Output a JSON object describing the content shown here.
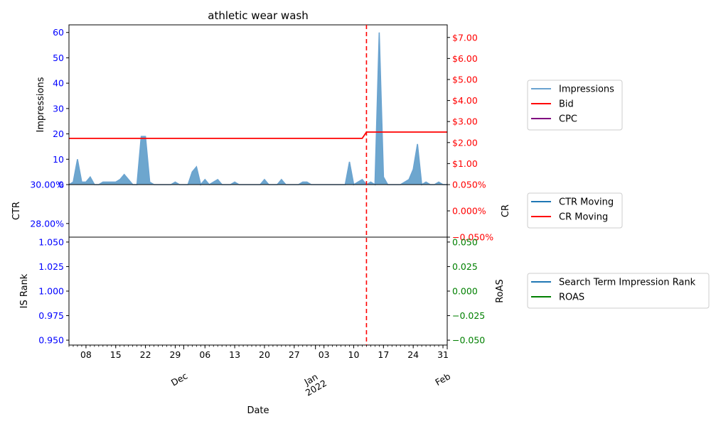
{
  "chart_data": {
    "type": "line",
    "title": "athletic wear wash",
    "xlabel": "Date",
    "x_range": [
      "2021-11-04",
      "2022-02-01"
    ],
    "x_ticks": [
      {
        "date": "2021-11-08",
        "label": "08"
      },
      {
        "date": "2021-11-15",
        "label": "15"
      },
      {
        "date": "2021-11-22",
        "label": "22"
      },
      {
        "date": "2021-11-29",
        "label": "29"
      },
      {
        "date": "2021-12-06",
        "label": "06"
      },
      {
        "date": "2021-12-13",
        "label": "13"
      },
      {
        "date": "2021-12-20",
        "label": "20"
      },
      {
        "date": "2021-12-27",
        "label": "27"
      },
      {
        "date": "2022-01-03",
        "label": "03"
      },
      {
        "date": "2022-01-10",
        "label": "10"
      },
      {
        "date": "2022-01-17",
        "label": "17"
      },
      {
        "date": "2022-01-24",
        "label": "24"
      },
      {
        "date": "2022-01-31",
        "label": "31"
      }
    ],
    "month_labels": [
      {
        "date": "2021-12-01",
        "lines": [
          "Dec"
        ]
      },
      {
        "date": "2022-01-01",
        "lines": [
          "Jan",
          "2022"
        ]
      },
      {
        "date": "2022-02-01",
        "lines": [
          "Feb"
        ]
      }
    ],
    "marker_date": "2022-01-13",
    "panels": [
      {
        "left_label": "Impressions",
        "left_ylim": [
          0,
          63
        ],
        "left_ticks": [
          {
            "v": 0,
            "label": "0"
          },
          {
            "v": 10,
            "label": "10"
          },
          {
            "v": 20,
            "label": "20"
          },
          {
            "v": 30,
            "label": "30"
          },
          {
            "v": 40,
            "label": "40"
          },
          {
            "v": 50,
            "label": "50"
          },
          {
            "v": 60,
            "label": "60"
          }
        ],
        "right_label": "",
        "right_ylim": [
          0,
          7.6
        ],
        "right_ticks": [
          {
            "v": 1,
            "label": "$1.00"
          },
          {
            "v": 2,
            "label": "$2.00"
          },
          {
            "v": 3,
            "label": "$3.00"
          },
          {
            "v": 4,
            "label": "$4.00"
          },
          {
            "v": 5,
            "label": "$5.00"
          },
          {
            "v": 6,
            "label": "$6.00"
          },
          {
            "v": 7,
            "label": "$7.00"
          }
        ],
        "left_tick_color": "#0000ff",
        "right_tick_color": "#ff0000",
        "legend": [
          {
            "name": "Impressions",
            "color": "#6aa3d0"
          },
          {
            "name": "Bid",
            "color": "#ff0000"
          },
          {
            "name": "CPC",
            "color": "#800080"
          }
        ]
      },
      {
        "left_label": "CTR",
        "left_ylim": [
          27.3,
          30.0
        ],
        "left_ticks": [
          {
            "v": 28.0,
            "label": "28.00%"
          },
          {
            "v": 30.0,
            "label": "30.00%"
          }
        ],
        "right_label": "CR",
        "right_ylim": [
          -0.05,
          0.05
        ],
        "right_ticks": [
          {
            "v": -0.05,
            "label": "−0.050%"
          },
          {
            "v": 0.0,
            "label": "0.000%"
          },
          {
            "v": 0.05,
            "label": "0.050%"
          }
        ],
        "left_tick_color": "#0000ff",
        "right_tick_color": "#ff0000",
        "legend": [
          {
            "name": "CTR Moving",
            "color": "#1f77b4"
          },
          {
            "name": "CR Moving",
            "color": "#ff0000"
          }
        ]
      },
      {
        "left_label": "IS Rank",
        "left_ylim": [
          0.945,
          1.055
        ],
        "left_ticks": [
          {
            "v": 0.95,
            "label": "0.950"
          },
          {
            "v": 0.975,
            "label": "0.975"
          },
          {
            "v": 1.0,
            "label": "1.000"
          },
          {
            "v": 1.025,
            "label": "1.025"
          },
          {
            "v": 1.05,
            "label": "1.050"
          }
        ],
        "right_label": "RoAS",
        "right_ylim": [
          -0.055,
          0.055
        ],
        "right_ticks": [
          {
            "v": -0.05,
            "label": "−0.050"
          },
          {
            "v": -0.025,
            "label": "−0.025"
          },
          {
            "v": 0.0,
            "label": "0.000"
          },
          {
            "v": 0.025,
            "label": "0.025"
          },
          {
            "v": 0.05,
            "label": "0.050"
          }
        ],
        "left_tick_color": "#0000ff",
        "right_tick_color": "#008000",
        "legend": [
          {
            "name": "Search Term Impression Rank",
            "color": "#1f77b4"
          },
          {
            "name": "ROAS",
            "color": "#008000"
          }
        ]
      }
    ],
    "series": [
      {
        "name": "Impressions",
        "axis": "left",
        "color": "#6aa3d0",
        "start": "2021-11-04",
        "values": [
          0,
          1,
          10,
          1,
          1,
          3,
          0,
          0,
          1,
          1,
          1,
          1,
          2,
          4,
          2,
          0,
          0,
          19,
          19,
          1,
          0,
          0,
          0,
          0,
          0,
          1,
          0,
          0,
          0,
          5,
          7,
          0,
          2,
          0,
          1,
          2,
          0,
          0,
          0,
          1,
          0,
          0,
          0,
          0,
          0,
          0,
          2,
          0,
          0,
          0,
          2,
          0,
          0,
          0,
          0,
          1,
          1,
          0,
          0,
          0,
          0,
          0,
          0,
          0,
          0,
          0,
          9,
          0,
          1,
          2,
          0,
          1,
          0,
          60,
          3,
          0,
          0,
          0,
          0,
          1,
          2,
          6,
          16,
          0,
          1,
          0,
          0,
          1,
          0,
          0
        ]
      },
      {
        "name": "Bid",
        "axis": "right",
        "color": "#ff0000",
        "points": [
          {
            "date": "2021-11-04",
            "v": 2.2
          },
          {
            "date": "2022-01-12",
            "v": 2.2
          },
          {
            "date": "2022-01-13",
            "v": 2.5
          },
          {
            "date": "2022-02-01",
            "v": 2.5
          }
        ]
      }
    ]
  }
}
